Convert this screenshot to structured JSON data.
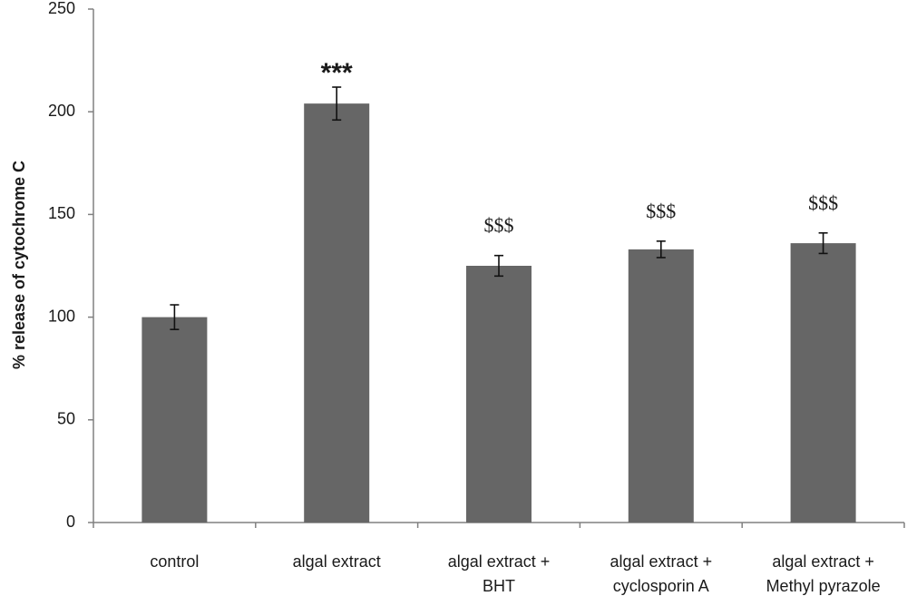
{
  "chart_data": {
    "type": "bar",
    "title": "",
    "xlabel": "",
    "ylabel": "% release of cytochrome C",
    "ylim": [
      0,
      250
    ],
    "yticks": [
      0,
      50,
      100,
      150,
      200,
      250
    ],
    "grid": false,
    "legend": "none",
    "categories": [
      [
        "control"
      ],
      [
        "algal extract"
      ],
      [
        "algal extract +",
        "BHT"
      ],
      [
        "algal extract +",
        "cyclosporin A"
      ],
      [
        "algal extract +",
        "Methyl pyrazole"
      ]
    ],
    "values": [
      100,
      204,
      125,
      133,
      136
    ],
    "errors": [
      6,
      8,
      5,
      4,
      5
    ],
    "annotations": [
      "",
      "***",
      "$$$",
      "$$$",
      "$$$"
    ],
    "bar_color": "#666666",
    "axis_color": "#808080"
  }
}
